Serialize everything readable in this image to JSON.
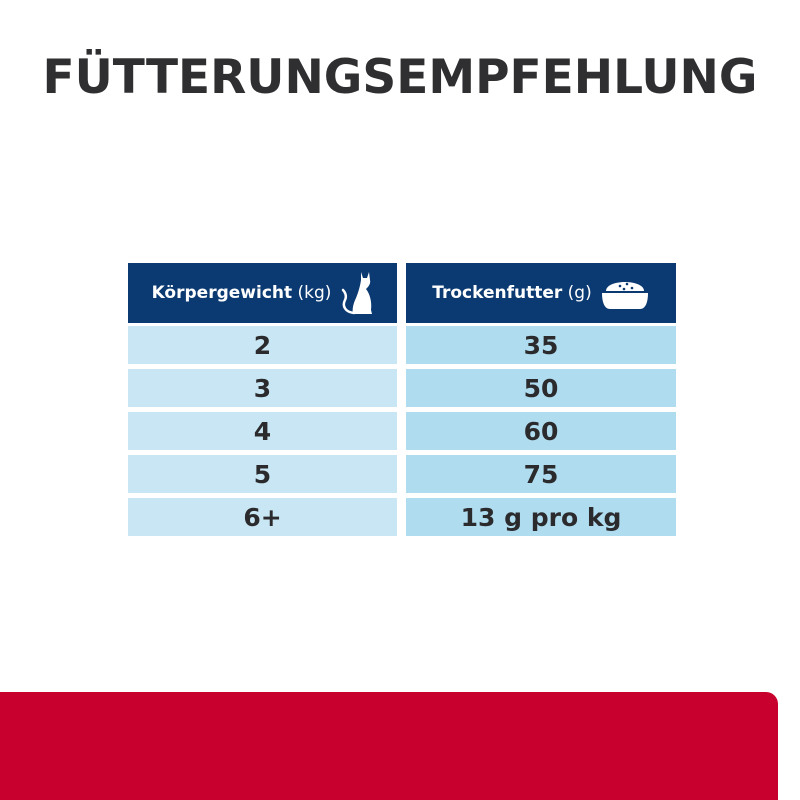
{
  "title": "FÜTTERUNGSEMPFEHLUNG",
  "table": {
    "columns": [
      {
        "label": "Körpergewicht",
        "unit": "(kg)",
        "icon": "cat-icon"
      },
      {
        "label": "Trockenfutter",
        "unit": "(g)",
        "icon": "food-bowl-icon"
      }
    ],
    "rows": [
      {
        "weight": "2",
        "food": "35"
      },
      {
        "weight": "3",
        "food": "50"
      },
      {
        "weight": "4",
        "food": "60"
      },
      {
        "weight": "5",
        "food": "75"
      },
      {
        "weight": "6+",
        "food": "13 g pro kg"
      }
    ]
  },
  "colors": {
    "header": "#0b3a72",
    "left_cell": "#c8e6f3",
    "right_cell": "#afdcef",
    "banner": "#c8002d"
  }
}
